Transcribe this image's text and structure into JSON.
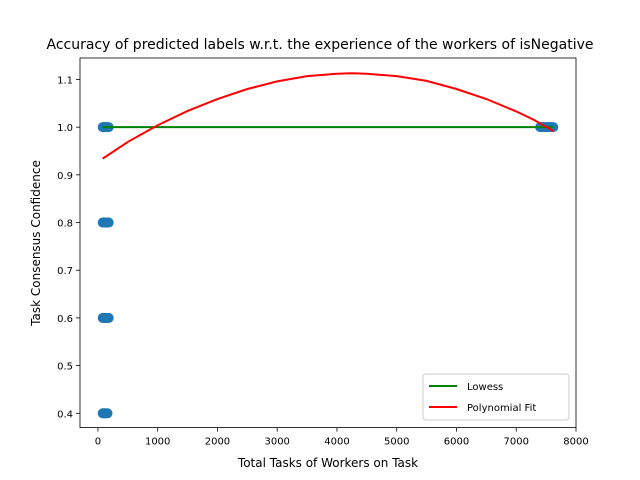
{
  "chart_data": {
    "type": "scatter",
    "title": "Accuracy of predicted labels w.r.t. the experience of the workers of isNegative",
    "xlabel": "Total Tasks of Workers on Task",
    "ylabel": "Task Consensus Confidence",
    "xlim": [
      -300,
      8000
    ],
    "ylim": [
      0.37,
      1.145
    ],
    "xticks": [
      0,
      1000,
      2000,
      3000,
      4000,
      5000,
      6000,
      7000,
      8000
    ],
    "yticks": [
      0.4,
      0.5,
      0.6,
      0.7,
      0.8,
      0.9,
      1.0,
      1.1
    ],
    "xtick_labels": [
      "0",
      "1000",
      "2000",
      "3000",
      "4000",
      "5000",
      "6000",
      "7000",
      "8000"
    ],
    "ytick_labels": [
      "0.4",
      "0.5",
      "0.6",
      "0.7",
      "0.8",
      "0.9",
      "1.0",
      "1.1"
    ],
    "grid": false,
    "legend_position": "lower-right",
    "scatter": {
      "color": "#1f77b4",
      "points": [
        {
          "x": 80,
          "y": 1.0
        },
        {
          "x": 95,
          "y": 1.0
        },
        {
          "x": 110,
          "y": 1.0
        },
        {
          "x": 125,
          "y": 1.0
        },
        {
          "x": 140,
          "y": 1.0
        },
        {
          "x": 160,
          "y": 1.0
        },
        {
          "x": 180,
          "y": 1.0
        },
        {
          "x": 80,
          "y": 0.8
        },
        {
          "x": 95,
          "y": 0.8
        },
        {
          "x": 110,
          "y": 0.8
        },
        {
          "x": 125,
          "y": 0.8
        },
        {
          "x": 140,
          "y": 0.8
        },
        {
          "x": 160,
          "y": 0.8
        },
        {
          "x": 180,
          "y": 0.8
        },
        {
          "x": 80,
          "y": 0.6
        },
        {
          "x": 95,
          "y": 0.6
        },
        {
          "x": 110,
          "y": 0.6
        },
        {
          "x": 125,
          "y": 0.6
        },
        {
          "x": 140,
          "y": 0.6
        },
        {
          "x": 160,
          "y": 0.6
        },
        {
          "x": 180,
          "y": 0.6
        },
        {
          "x": 80,
          "y": 0.4
        },
        {
          "x": 95,
          "y": 0.4
        },
        {
          "x": 110,
          "y": 0.4
        },
        {
          "x": 125,
          "y": 0.4
        },
        {
          "x": 140,
          "y": 0.4
        },
        {
          "x": 160,
          "y": 0.4
        },
        {
          "x": 7400,
          "y": 1.0
        },
        {
          "x": 7420,
          "y": 1.0
        },
        {
          "x": 7440,
          "y": 1.0
        },
        {
          "x": 7460,
          "y": 1.0
        },
        {
          "x": 7480,
          "y": 1.0
        },
        {
          "x": 7500,
          "y": 1.0
        },
        {
          "x": 7520,
          "y": 1.0
        },
        {
          "x": 7540,
          "y": 1.0
        },
        {
          "x": 7560,
          "y": 1.0
        },
        {
          "x": 7580,
          "y": 1.0
        },
        {
          "x": 7600,
          "y": 1.0
        },
        {
          "x": 7620,
          "y": 1.0
        }
      ]
    },
    "series": [
      {
        "name": "Lowess",
        "color": "#008000",
        "x": [
          80,
          1000,
          2000,
          3000,
          4000,
          5000,
          6000,
          7000,
          7620
        ],
        "y": [
          1.0,
          1.0,
          1.0,
          1.0,
          1.0,
          1.0,
          1.0,
          1.0,
          1.0
        ]
      },
      {
        "name": "Polynomial Fit",
        "color": "#ff0000",
        "x": [
          80,
          500,
          1000,
          1500,
          2000,
          2500,
          3000,
          3500,
          4000,
          4250,
          4500,
          5000,
          5500,
          6000,
          6500,
          7000,
          7300,
          7620
        ],
        "y": [
          0.934,
          0.969,
          1.004,
          1.034,
          1.059,
          1.08,
          1.096,
          1.107,
          1.112,
          1.113,
          1.112,
          1.107,
          1.097,
          1.08,
          1.059,
          1.033,
          1.015,
          0.992
        ]
      }
    ]
  }
}
